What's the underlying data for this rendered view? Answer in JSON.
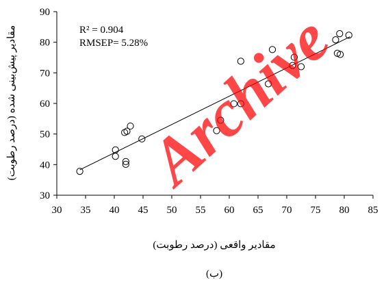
{
  "chart_data": {
    "type": "scatter",
    "title": "",
    "xlabel": "مقادیر واقعی (درصد رطوبت)",
    "ylabel": "مقادیر پیش‌بینی شده (درصد رطوبت)",
    "xlim": [
      30,
      85
    ],
    "ylim": [
      30,
      90
    ],
    "x_ticks": [
      30,
      35,
      40,
      45,
      50,
      55,
      60,
      65,
      70,
      75,
      80,
      85
    ],
    "y_ticks": [
      30,
      40,
      50,
      60,
      70,
      80,
      90
    ],
    "grid": false,
    "legend": "none",
    "annotations": [
      "R² = 0.904",
      "RMSEP= 5.28%"
    ],
    "caption": "(ب)",
    "marker_color": "#000000",
    "trendline": {
      "type": "linear",
      "x": [
        34,
        81
      ],
      "y": [
        38.3,
        81.8
      ]
    },
    "points": {
      "x": [
        34.0,
        40.2,
        40.2,
        41.8,
        42.0,
        42.0,
        42.2,
        42.8,
        44.8,
        57.8,
        58.5,
        60.8,
        62.0,
        62.0,
        66.8,
        67.5,
        71.0,
        71.3,
        72.5,
        78.5,
        78.8,
        79.2,
        79.3,
        80.8
      ],
      "y": [
        37.8,
        44.8,
        42.7,
        50.5,
        41.0,
        40.1,
        50.9,
        52.6,
        48.4,
        51.1,
        54.5,
        59.9,
        73.8,
        59.9,
        66.4,
        77.6,
        72.4,
        75.1,
        72.0,
        80.8,
        76.4,
        82.8,
        76.0,
        82.3
      ]
    }
  },
  "watermark": {
    "text": "Archive",
    "color": "#ff0000"
  }
}
